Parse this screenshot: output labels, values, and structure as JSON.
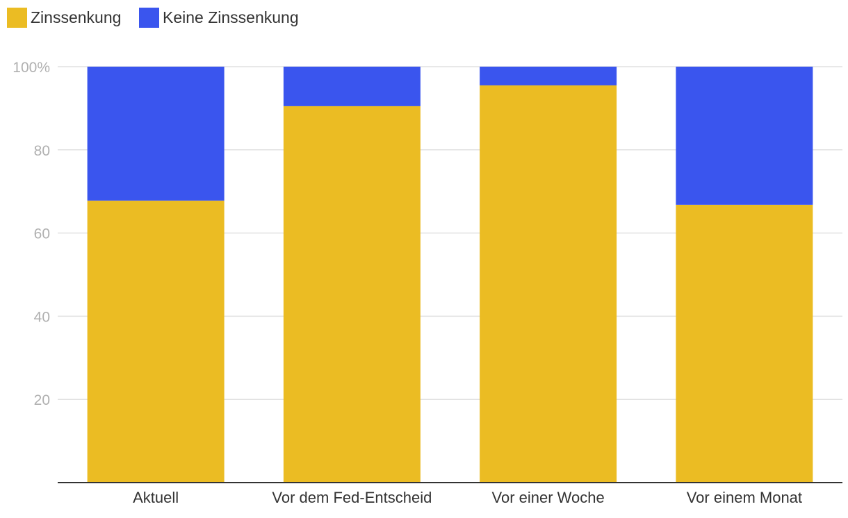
{
  "chart_data": {
    "type": "bar",
    "stacked": true,
    "categories": [
      "Aktuell",
      "Vor dem Fed-Entscheid",
      "Vor einer Woche",
      "Vor einem Monat"
    ],
    "series": [
      {
        "name": "Zinssenkung",
        "color": "#EBBC23",
        "values": [
          67.8,
          90.5,
          95.5,
          66.8
        ]
      },
      {
        "name": "Keine Zinssenkung",
        "color": "#3A55EE",
        "values": [
          32.2,
          9.5,
          4.5,
          33.2
        ]
      }
    ],
    "yticks": [
      {
        "value": 20,
        "label": "20"
      },
      {
        "value": 40,
        "label": "40"
      },
      {
        "value": 60,
        "label": "60"
      },
      {
        "value": 80,
        "label": "80"
      },
      {
        "value": 100,
        "label": "100%"
      }
    ],
    "ylim": [
      0,
      100
    ],
    "grid": true,
    "legend_position": "top-left",
    "title": "",
    "xlabel": "",
    "ylabel": ""
  }
}
